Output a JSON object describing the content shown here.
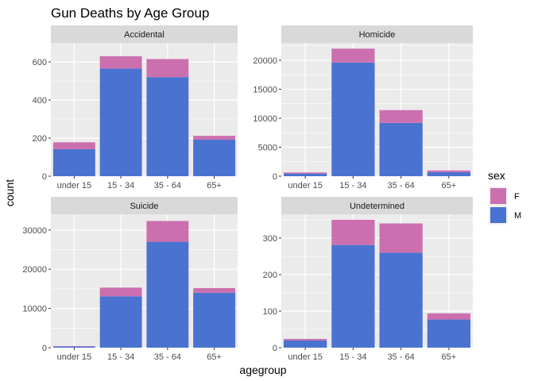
{
  "chart_data": {
    "type": "bar",
    "title": "Gun Deaths by Age Group",
    "xlabel": "agegroup",
    "ylabel": "count",
    "categories": [
      "under 15",
      "15 - 34",
      "35 - 64",
      "65+"
    ],
    "legend": {
      "title": "sex",
      "position": "right",
      "items": [
        {
          "name": "F",
          "color": "#CC6FAF"
        },
        {
          "name": "M",
          "color": "#4A72D0"
        }
      ]
    },
    "grid": true,
    "stacked": true,
    "panels": [
      {
        "name": "Accidental",
        "ylim": [
          0,
          700
        ],
        "ticks": [
          {
            "value": 0,
            "label": "0"
          },
          {
            "value": 200,
            "label": "200"
          },
          {
            "value": 400,
            "label": "400"
          },
          {
            "value": 600,
            "label": "600"
          }
        ],
        "series": [
          {
            "name": "M",
            "values": [
              142,
              565,
              520,
              192
            ]
          },
          {
            "name": "F",
            "values": [
              36,
              65,
              95,
              20
            ]
          }
        ]
      },
      {
        "name": "Homicide",
        "ylim": [
          0,
          23000
        ],
        "ticks": [
          {
            "value": 0,
            "label": "0"
          },
          {
            "value": 5000,
            "label": "5000"
          },
          {
            "value": 10000,
            "label": "10000"
          },
          {
            "value": 15000,
            "label": "15000"
          },
          {
            "value": 20000,
            "label": "20000"
          }
        ],
        "series": [
          {
            "name": "M",
            "values": [
              450,
              19600,
              9200,
              700
            ]
          },
          {
            "name": "F",
            "values": [
              200,
              2400,
              2200,
              300
            ]
          }
        ]
      },
      {
        "name": "Suicide",
        "ylim": [
          0,
          34000
        ],
        "ticks": [
          {
            "value": 0,
            "label": "0"
          },
          {
            "value": 10000,
            "label": "10000"
          },
          {
            "value": 20000,
            "label": "20000"
          },
          {
            "value": 30000,
            "label": "30000"
          }
        ],
        "series": [
          {
            "name": "M",
            "values": [
              300,
              13100,
              27000,
              14000
            ]
          },
          {
            "name": "F",
            "values": [
              80,
              2200,
              5300,
              1200
            ]
          }
        ]
      },
      {
        "name": "Undetermined",
        "ylim": [
          0,
          365
        ],
        "ticks": [
          {
            "value": 0,
            "label": "0"
          },
          {
            "value": 100,
            "label": "100"
          },
          {
            "value": 200,
            "label": "200"
          },
          {
            "value": 300,
            "label": "300"
          }
        ],
        "series": [
          {
            "name": "M",
            "values": [
              20,
              281,
              260,
              77
            ]
          },
          {
            "name": "F",
            "values": [
              4,
              69,
              80,
              17
            ]
          }
        ]
      }
    ]
  }
}
